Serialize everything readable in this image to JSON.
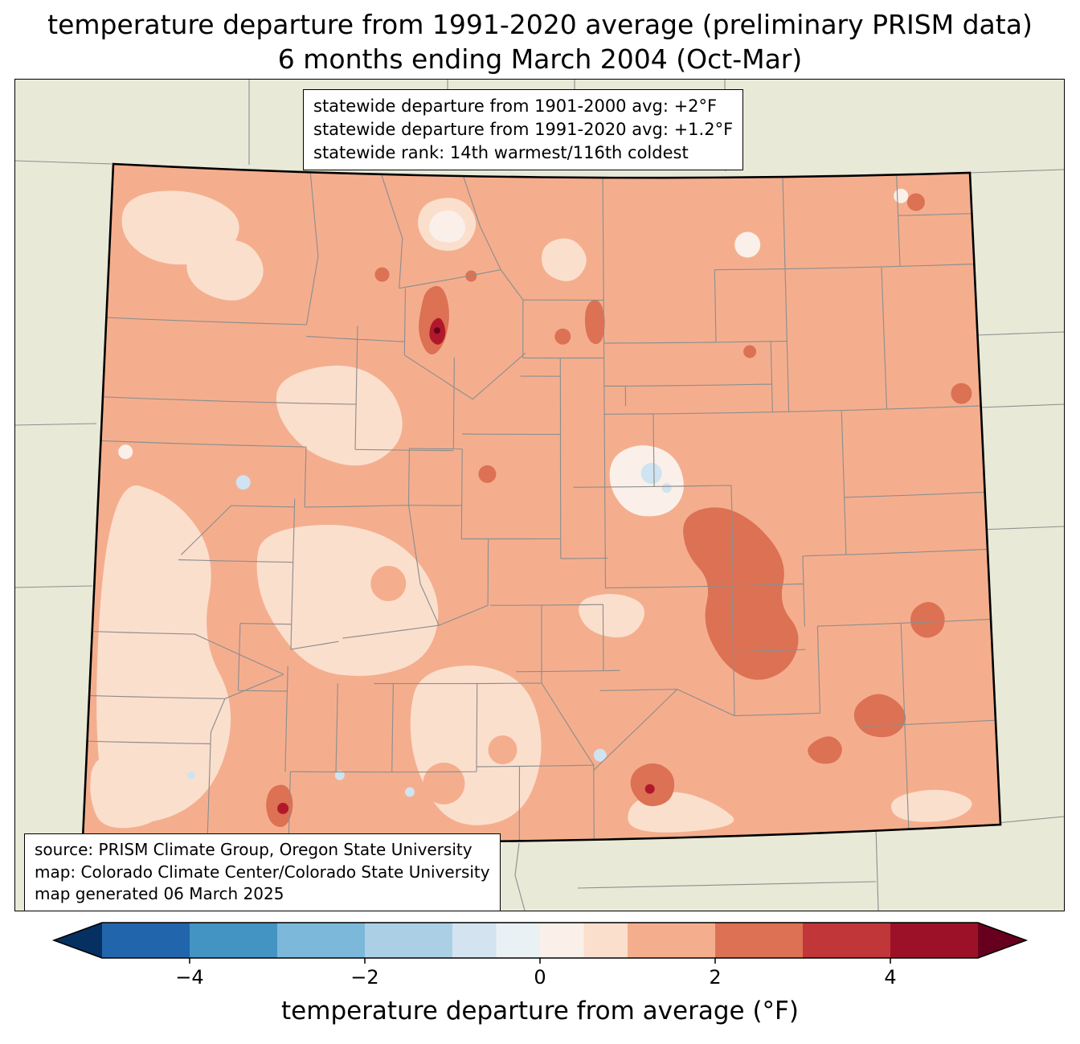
{
  "title": {
    "line1": "temperature departure from 1991-2020 average (preliminary PRISM data)",
    "line2": "6 months ending March 2004 (Oct-Mar)"
  },
  "stats_box": {
    "lines": [
      "statewide departure from 1901-2000 avg: +2°F",
      "statewide departure from 1991-2020 avg: +1.2°F",
      "statewide rank: 14th warmest/116th coldest"
    ]
  },
  "source_box": {
    "lines": [
      "source: PRISM Climate Group, Oregon State University",
      "map: Colorado Climate Center/Colorado State University",
      "map generated 06 March 2025"
    ]
  },
  "colorbar": {
    "label": "temperature departure from average (°F)",
    "tick_labels": [
      "−4",
      "−2",
      "0",
      "2",
      "4"
    ],
    "tick_values": [
      -4,
      -2,
      0,
      2,
      4
    ],
    "value_range": [
      -5,
      5
    ],
    "segment_bounds": [
      -5,
      -4,
      -3,
      -2,
      -1,
      -0.5,
      0,
      0.5,
      1,
      2,
      3,
      4,
      5
    ],
    "segment_colors": [
      "#2166ac",
      "#4393c3",
      "#7cb8d9",
      "#abd0e6",
      "#d3e4f0",
      "#eaf1f5",
      "#faf0e9",
      "#fbdfcd",
      "#f4ae8e",
      "#dc7154",
      "#c13639",
      "#9c1127"
    ],
    "under_arrow_color": "#053061",
    "over_arrow_color": "#67001f"
  },
  "map": {
    "colors": {
      "background": "#e9e9d8",
      "state_base_fill": "#f4ae8e",
      "pale_fill": "#fbdfcd",
      "white_fill": "#faf0e9",
      "cool_fill": "#cfe3f0",
      "warm_fill": "#dc7154",
      "hot_fill": "#b2182b",
      "hot_core_fill": "#67001f",
      "county_line": "#8e8e8e",
      "state_border": "#000000"
    }
  }
}
